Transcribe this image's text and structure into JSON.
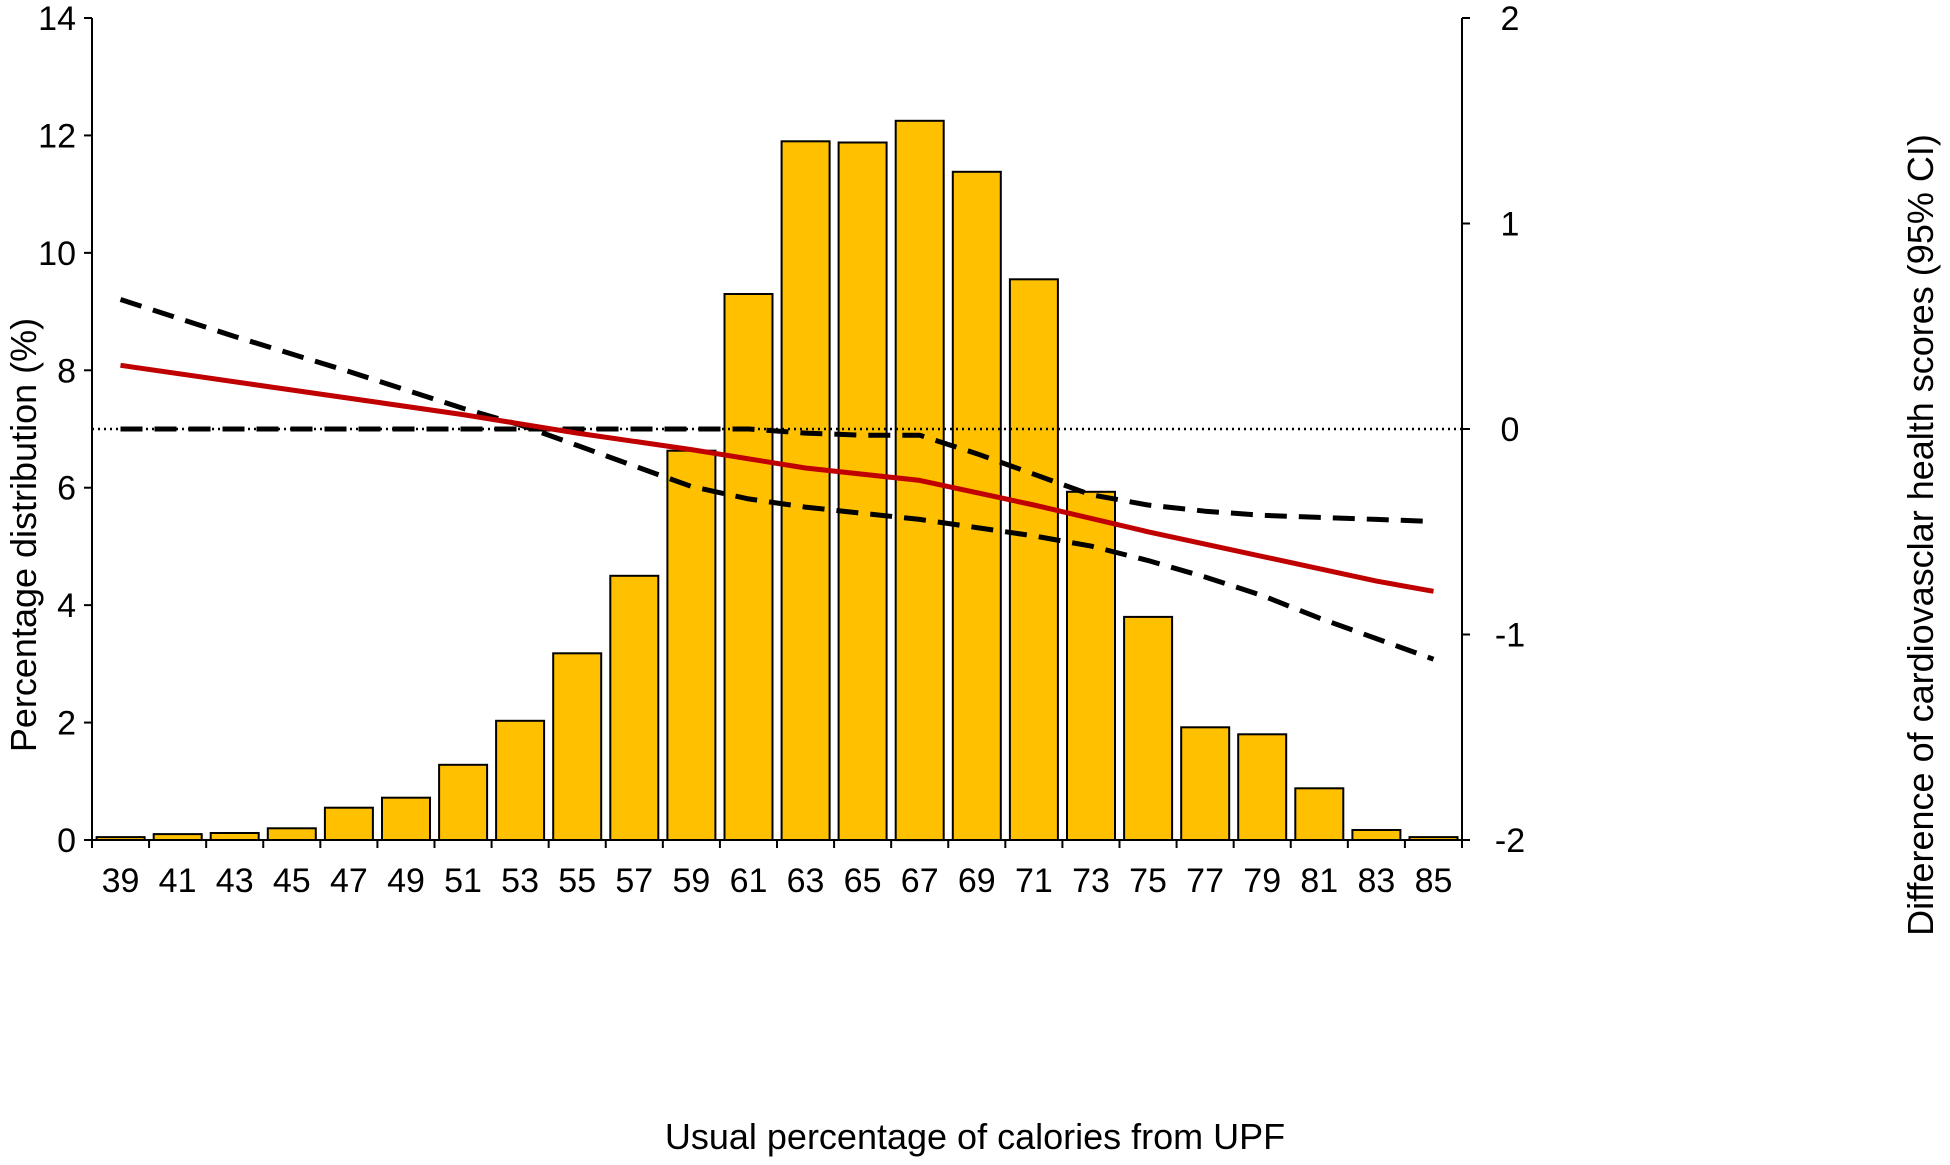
{
  "chart_data": {
    "type": "bar",
    "title": "",
    "xlabel": "Usual percentage of calories from UPF",
    "ylabel": "Percentage distribution (%)",
    "y2label": "Difference of cardiovasclar health scores (95% CI)",
    "categories": [
      "39",
      "41",
      "43",
      "45",
      "47",
      "49",
      "51",
      "53",
      "55",
      "57",
      "59",
      "61",
      "63",
      "65",
      "67",
      "69",
      "71",
      "73",
      "75",
      "77",
      "79",
      "81",
      "83",
      "85"
    ],
    "values": [
      0.05,
      0.1,
      0.12,
      0.2,
      0.55,
      0.72,
      1.28,
      2.03,
      3.18,
      4.5,
      6.63,
      9.3,
      11.9,
      11.88,
      12.25,
      11.38,
      9.55,
      5.93,
      3.8,
      1.92,
      1.8,
      0.88,
      0.17,
      0.05
    ],
    "ylim": [
      0,
      14
    ],
    "yticks": [
      "0",
      "2",
      "4",
      "6",
      "8",
      "10",
      "12",
      "14"
    ],
    "y2lim": [
      -2,
      2
    ],
    "y2ticks": [
      "-2",
      "-1",
      "0",
      "1",
      "2"
    ],
    "reference_line_y2": 0,
    "lines": [
      {
        "role": "estimate",
        "color": "#c00000",
        "style": "solid",
        "x": [
          39,
          45,
          51,
          55,
          59,
          63,
          67,
          71,
          75,
          79,
          83,
          85
        ],
        "y": [
          0.31,
          0.19,
          0.07,
          -0.02,
          -0.1,
          -0.19,
          -0.25,
          -0.37,
          -0.5,
          -0.62,
          -0.74,
          -0.79
        ]
      },
      {
        "role": "upper CI",
        "color": "#000000",
        "style": "dashed",
        "x": [
          39,
          43,
          47,
          51,
          53,
          55,
          57,
          59,
          61,
          63,
          65,
          67,
          69,
          71,
          73,
          75,
          77,
          79,
          81,
          83,
          85
        ],
        "y": [
          0.0,
          0.0,
          0.0,
          0.0,
          0.0,
          0.0,
          0.0,
          0.0,
          0.0,
          -0.02,
          -0.03,
          -0.03,
          -0.12,
          -0.22,
          -0.32,
          -0.37,
          -0.4,
          -0.42,
          -0.43,
          -0.44,
          -0.45
        ]
      },
      {
        "role": "lower CI",
        "color": "#000000",
        "style": "dashed",
        "x": [
          39,
          43,
          47,
          51,
          53,
          55,
          57,
          59,
          61,
          63,
          65,
          67,
          69,
          71,
          73,
          75,
          77,
          79,
          81,
          83,
          85
        ],
        "y": [
          0.63,
          0.45,
          0.28,
          0.1,
          0.02,
          -0.08,
          -0.18,
          -0.28,
          -0.34,
          -0.38,
          -0.41,
          -0.44,
          -0.48,
          -0.52,
          -0.57,
          -0.64,
          -0.72,
          -0.81,
          -0.92,
          -1.02,
          -1.12
        ]
      }
    ],
    "colors": {
      "bar_fill": "#ffc000",
      "bar_stroke": "#000000",
      "estimate": "#c00000",
      "ci": "#000000",
      "axis": "#000000"
    },
    "grid": false,
    "legend": "none"
  }
}
